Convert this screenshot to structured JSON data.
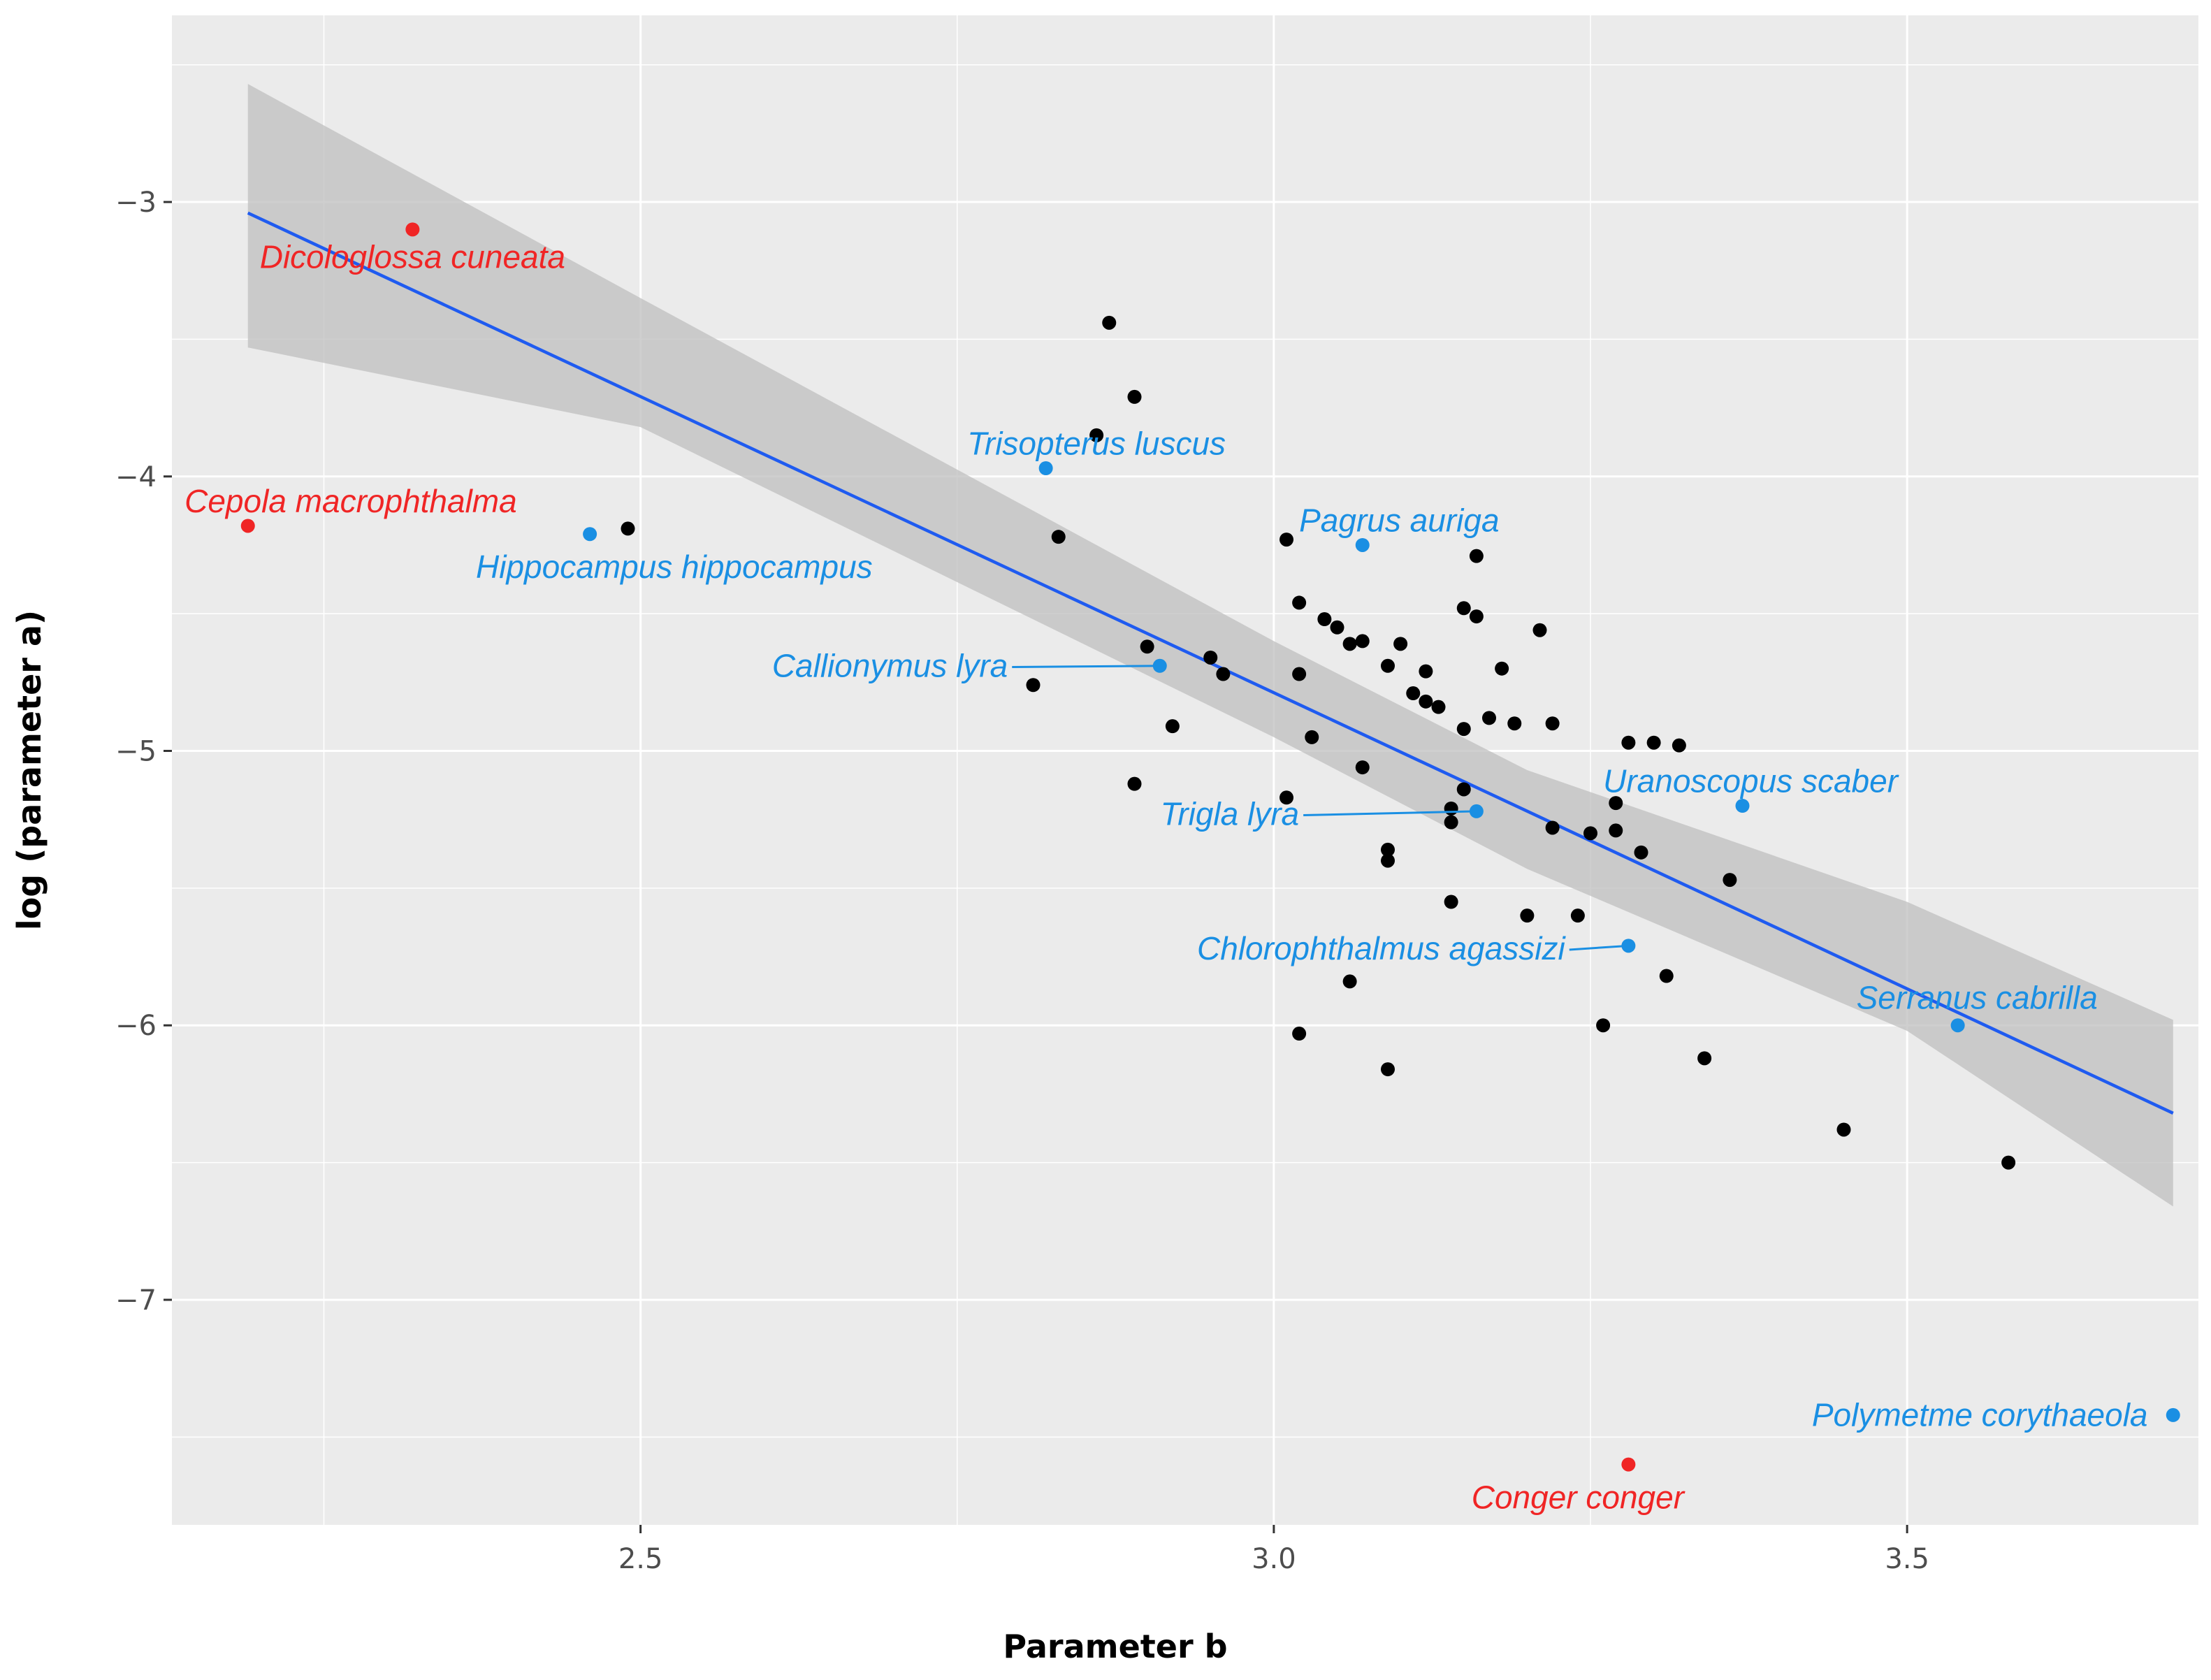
{
  "chart_data": {
    "type": "scatter",
    "title": "",
    "xlabel": "Parameter b",
    "ylabel": "log (parameter a)",
    "xlim": [
      2.13,
      3.73
    ],
    "ylim": [
      -7.82,
      -2.32
    ],
    "xticks": [
      2.5,
      3.0,
      3.5
    ],
    "xtick_labels": [
      "2.5",
      "3.0",
      "3.5"
    ],
    "yticks": [
      -3,
      -4,
      -5,
      -6,
      -7
    ],
    "ytick_labels": [
      "−3",
      "−4",
      "−5",
      "−6",
      "−7"
    ],
    "grid": true,
    "colors": {
      "panel": "#ebebeb",
      "grid_major": "#ffffff",
      "point": "#000000",
      "highlight_blue": "#1a8fe3",
      "highlight_red": "#f02525",
      "fit_line": "#1f5bf0",
      "ribbon": "#bdbdbd"
    },
    "regression": {
      "x_start": 2.19,
      "y_start": -3.04,
      "x_end": 3.71,
      "y_end": -6.32,
      "ci_upper": [
        [
          2.19,
          -2.57
        ],
        [
          2.5,
          -3.35
        ],
        [
          3.0,
          -4.6
        ],
        [
          3.2,
          -5.07
        ],
        [
          3.5,
          -5.55
        ],
        [
          3.71,
          -5.98
        ]
      ],
      "ci_lower": [
        [
          3.71,
          -6.66
        ],
        [
          3.5,
          -6.02
        ],
        [
          3.2,
          -5.43
        ],
        [
          3.0,
          -4.95
        ],
        [
          2.5,
          -3.82
        ],
        [
          2.19,
          -3.53
        ]
      ]
    },
    "points": [
      {
        "x": 2.49,
        "y": -4.19
      },
      {
        "x": 2.81,
        "y": -4.76
      },
      {
        "x": 2.83,
        "y": -4.22
      },
      {
        "x": 2.86,
        "y": -3.85
      },
      {
        "x": 2.87,
        "y": -3.44
      },
      {
        "x": 2.89,
        "y": -3.71
      },
      {
        "x": 2.89,
        "y": -5.12
      },
      {
        "x": 2.9,
        "y": -4.62
      },
      {
        "x": 2.92,
        "y": -4.91
      },
      {
        "x": 2.95,
        "y": -4.66
      },
      {
        "x": 2.96,
        "y": -4.72
      },
      {
        "x": 3.01,
        "y": -4.23
      },
      {
        "x": 3.01,
        "y": -5.17
      },
      {
        "x": 3.02,
        "y": -4.46
      },
      {
        "x": 3.02,
        "y": -4.72
      },
      {
        "x": 3.02,
        "y": -6.03
      },
      {
        "x": 3.03,
        "y": -4.95
      },
      {
        "x": 3.04,
        "y": -4.52
      },
      {
        "x": 3.05,
        "y": -4.55
      },
      {
        "x": 3.06,
        "y": -4.61
      },
      {
        "x": 3.06,
        "y": -5.84
      },
      {
        "x": 3.07,
        "y": -4.6
      },
      {
        "x": 3.07,
        "y": -5.06
      },
      {
        "x": 3.09,
        "y": -4.69
      },
      {
        "x": 3.09,
        "y": -5.36
      },
      {
        "x": 3.09,
        "y": -5.4
      },
      {
        "x": 3.09,
        "y": -6.16
      },
      {
        "x": 3.1,
        "y": -4.61
      },
      {
        "x": 3.11,
        "y": -4.79
      },
      {
        "x": 3.12,
        "y": -4.82
      },
      {
        "x": 3.12,
        "y": -4.71
      },
      {
        "x": 3.13,
        "y": -4.84
      },
      {
        "x": 3.14,
        "y": -5.21
      },
      {
        "x": 3.14,
        "y": -5.26
      },
      {
        "x": 3.14,
        "y": -5.55
      },
      {
        "x": 3.15,
        "y": -4.92
      },
      {
        "x": 3.15,
        "y": -4.48
      },
      {
        "x": 3.15,
        "y": -5.14
      },
      {
        "x": 3.16,
        "y": -4.29
      },
      {
        "x": 3.16,
        "y": -4.51
      },
      {
        "x": 3.17,
        "y": -4.88
      },
      {
        "x": 3.18,
        "y": -4.7
      },
      {
        "x": 3.19,
        "y": -4.9
      },
      {
        "x": 3.2,
        "y": -5.6
      },
      {
        "x": 3.21,
        "y": -4.56
      },
      {
        "x": 3.22,
        "y": -4.9
      },
      {
        "x": 3.22,
        "y": -5.28
      },
      {
        "x": 3.24,
        "y": -5.6
      },
      {
        "x": 3.25,
        "y": -5.3
      },
      {
        "x": 3.26,
        "y": -6.0
      },
      {
        "x": 3.27,
        "y": -5.19
      },
      {
        "x": 3.27,
        "y": -5.29
      },
      {
        "x": 3.28,
        "y": -4.97
      },
      {
        "x": 3.29,
        "y": -5.37
      },
      {
        "x": 3.3,
        "y": -4.97
      },
      {
        "x": 3.31,
        "y": -5.82
      },
      {
        "x": 3.32,
        "y": -4.98
      },
      {
        "x": 3.34,
        "y": -6.12
      },
      {
        "x": 3.36,
        "y": -5.47
      },
      {
        "x": 3.45,
        "y": -6.38
      },
      {
        "x": 3.58,
        "y": -6.5
      }
    ],
    "labeled_points": [
      {
        "name": "Dicologlossa cuneata",
        "x": 2.32,
        "y": -3.1,
        "color": "red",
        "anchor": "middle",
        "lx": 2.32,
        "ly": -3.24
      },
      {
        "name": "Cepola macrophthalma",
        "x": 2.19,
        "y": -4.18,
        "color": "red",
        "anchor": "start",
        "lx": 2.14,
        "ly": -4.13
      },
      {
        "name": "Hippocampus hippocampus",
        "x": 2.46,
        "y": -4.21,
        "color": "blue",
        "anchor": "start",
        "lx": 2.37,
        "ly": -4.37
      },
      {
        "name": "Trisopterus luscus",
        "x": 2.82,
        "y": -3.97,
        "color": "blue",
        "anchor": "middle",
        "lx": 2.86,
        "ly": -3.92
      },
      {
        "name": "Pagrus auriga",
        "x": 3.07,
        "y": -4.25,
        "color": "blue",
        "anchor": "start",
        "lx": 3.02,
        "ly": -4.2
      },
      {
        "name": "Callionymus lyra",
        "x": 2.91,
        "y": -4.69,
        "color": "blue",
        "anchor": "end",
        "lx": 2.79,
        "ly": -4.73,
        "leader": true
      },
      {
        "name": "Uranoscopus scaber",
        "x": 3.37,
        "y": -5.2,
        "color": "blue",
        "anchor": "start",
        "lx": 3.26,
        "ly": -5.15
      },
      {
        "name": "Trigla lyra",
        "x": 3.16,
        "y": -5.22,
        "color": "blue",
        "anchor": "end",
        "lx": 3.02,
        "ly": -5.27,
        "leader": true
      },
      {
        "name": "Chlorophthalmus agassizi",
        "x": 3.28,
        "y": -5.71,
        "color": "blue",
        "anchor": "end",
        "lx": 3.23,
        "ly": -5.76,
        "leader": true
      },
      {
        "name": "Serranus cabrilla",
        "x": 3.54,
        "y": -6.0,
        "color": "blue",
        "anchor": "start",
        "lx": 3.46,
        "ly": -5.94
      },
      {
        "name": "Polymetme corythaeola",
        "x": 3.71,
        "y": -7.42,
        "color": "blue",
        "anchor": "end",
        "lx": 3.69,
        "ly": -7.46
      },
      {
        "name": "Conger conger",
        "x": 3.28,
        "y": -7.6,
        "color": "red",
        "anchor": "middle",
        "lx": 3.24,
        "ly": -7.76
      }
    ]
  }
}
